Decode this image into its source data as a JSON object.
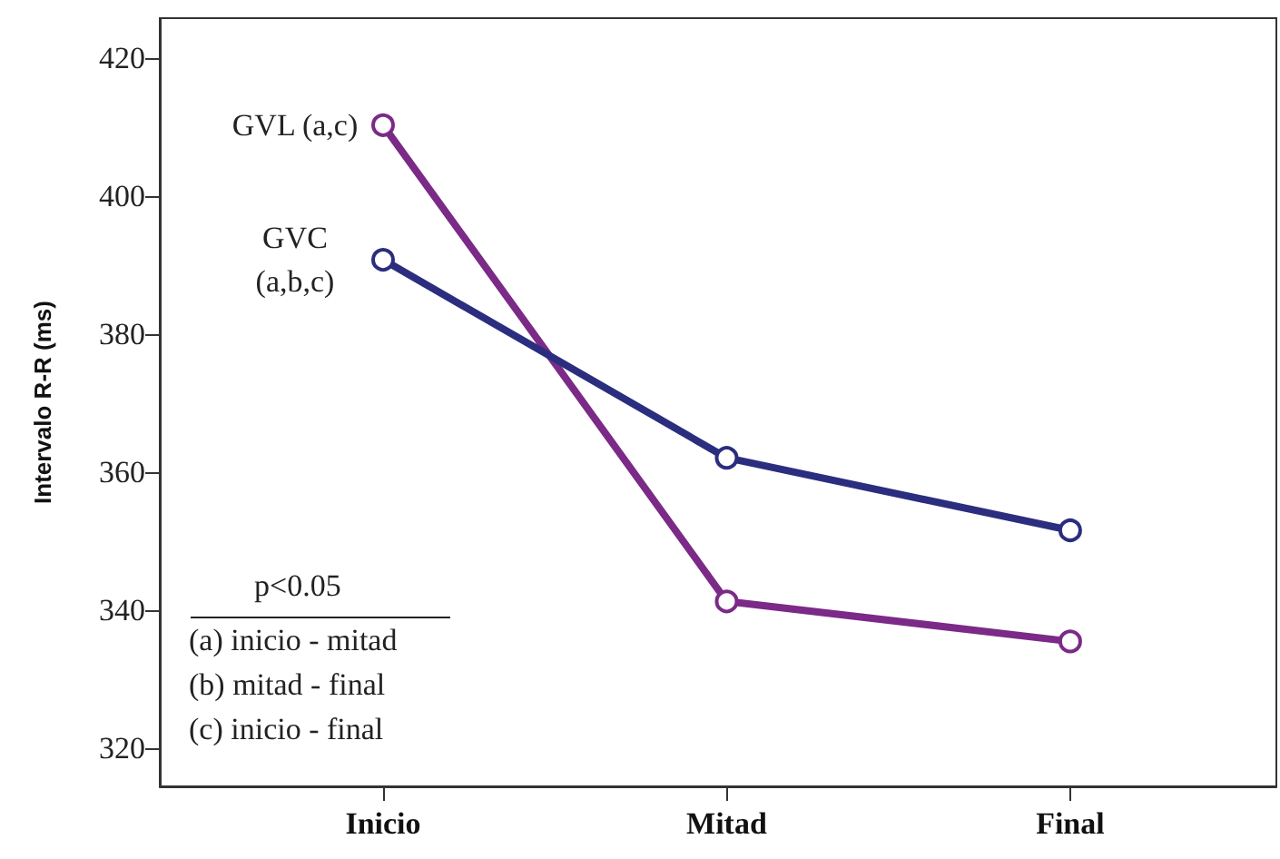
{
  "chart_data": {
    "type": "line",
    "ylabel": "Intervalo R-R (ms)",
    "categories": [
      "Inicio",
      "Mitad",
      "Final"
    ],
    "series": [
      {
        "name": "GVL (a,c)",
        "color": "#7b2a87",
        "values": [
          410.3,
          341.3,
          335.5
        ]
      },
      {
        "name": "GVC\n(a,b,c)",
        "color": "#2b2e7e",
        "values": [
          390.8,
          362.1,
          351.6
        ]
      }
    ],
    "ylim": [
      314.5,
      425.8
    ],
    "yticks": [
      320,
      340,
      360,
      380,
      400,
      420
    ],
    "grid": false,
    "marker": "circle",
    "line_style": "solid",
    "annotations": [
      "p<0.05",
      "(a) inicio - mitad",
      "(b) mitad - final",
      "(c) inicio - final"
    ]
  }
}
